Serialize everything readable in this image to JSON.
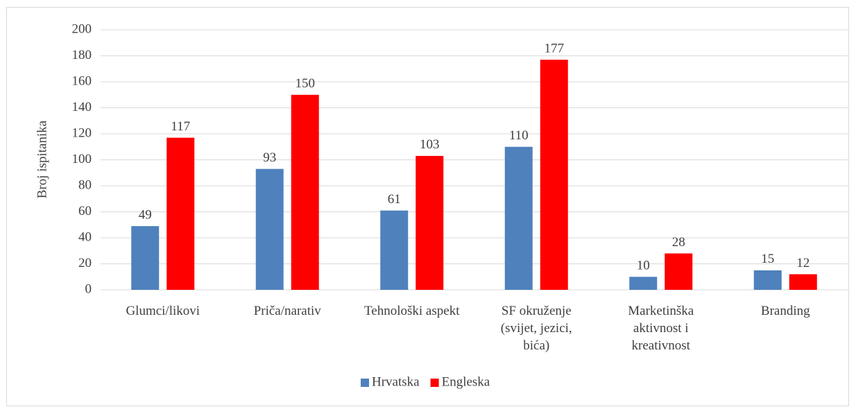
{
  "chart_data": {
    "type": "bar",
    "y_label": "Broj ispitanika",
    "categories": [
      "Glumci/likovi",
      "Priča/narativ",
      "Tehnološki aspekt",
      "SF okruženje (svijet, jezici, bića)",
      "Marketinška aktivnost i kreativnost",
      "Branding"
    ],
    "series": [
      {
        "name": "Hrvatska",
        "color": "#4f81bd",
        "values": [
          49,
          93,
          61,
          110,
          10,
          15
        ]
      },
      {
        "name": "Engleska",
        "color": "#ff0000",
        "values": [
          117,
          150,
          103,
          177,
          28,
          12
        ]
      }
    ],
    "ylim": [
      0,
      200
    ],
    "yticks": [
      0,
      20,
      40,
      60,
      80,
      100,
      120,
      140,
      160,
      180,
      200
    ],
    "grid": true,
    "legend": "bottom"
  }
}
